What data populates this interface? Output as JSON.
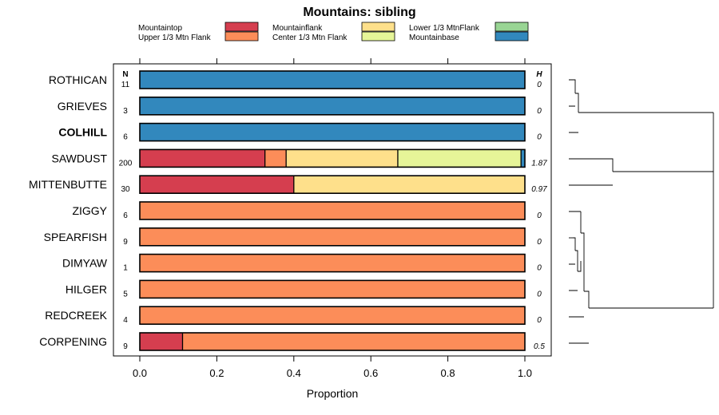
{
  "chart_data": {
    "type": "stacked-horizontal-bar",
    "title": "Mountains: sibling",
    "xlabel": "Proportion",
    "xlim": [
      0,
      1
    ],
    "xticks": [
      "0.0",
      "0.2",
      "0.4",
      "0.6",
      "0.8",
      "1.0"
    ],
    "xtick_values": [
      0,
      0.2,
      0.4,
      0.6,
      0.8,
      1.0
    ],
    "n_header": "N",
    "h_header": "H",
    "legend_position": "top",
    "legend": [
      {
        "name": "Mountaintop",
        "color": "#d53e4f"
      },
      {
        "name": "Upper 1/3 Mtn Flank",
        "color": "#fc8d59"
      },
      {
        "name": "Mountainflank",
        "color": "#fee08b"
      },
      {
        "name": "Center 1/3 Mtn Flank",
        "color": "#e6f598"
      },
      {
        "name": "Lower 1/3 MtnFlank",
        "color": "#99d594"
      },
      {
        "name": "Mountainbase",
        "color": "#3288bd"
      }
    ],
    "rows": [
      {
        "label": "ROTHICAN",
        "bold": false,
        "n": "11",
        "h": "0",
        "segments": [
          {
            "cat": "Mountainbase",
            "value": 1.0
          }
        ]
      },
      {
        "label": "GRIEVES",
        "bold": false,
        "n": "3",
        "h": "0",
        "segments": [
          {
            "cat": "Mountainbase",
            "value": 1.0
          }
        ]
      },
      {
        "label": "COLHILL",
        "bold": true,
        "n": "6",
        "h": "0",
        "segments": [
          {
            "cat": "Mountainbase",
            "value": 1.0
          }
        ]
      },
      {
        "label": "SAWDUST",
        "bold": false,
        "n": "200",
        "h": "1.87",
        "segments": [
          {
            "cat": "Mountaintop",
            "value": 0.325
          },
          {
            "cat": "Upper 1/3 Mtn Flank",
            "value": 0.055
          },
          {
            "cat": "Mountainflank",
            "value": 0.29
          },
          {
            "cat": "Center 1/3 Mtn Flank",
            "value": 0.32
          },
          {
            "cat": "Mountainbase",
            "value": 0.01
          }
        ]
      },
      {
        "label": "MITTENBUTTE",
        "bold": false,
        "n": "30",
        "h": "0.97",
        "segments": [
          {
            "cat": "Mountaintop",
            "value": 0.4
          },
          {
            "cat": "Mountainflank",
            "value": 0.6
          }
        ]
      },
      {
        "label": "ZIGGY",
        "bold": false,
        "n": "6",
        "h": "0",
        "segments": [
          {
            "cat": "Upper 1/3 Mtn Flank",
            "value": 1.0
          }
        ]
      },
      {
        "label": "SPEARFISH",
        "bold": false,
        "n": "9",
        "h": "0",
        "segments": [
          {
            "cat": "Upper 1/3 Mtn Flank",
            "value": 1.0
          }
        ]
      },
      {
        "label": "DIMYAW",
        "bold": false,
        "n": "1",
        "h": "0",
        "segments": [
          {
            "cat": "Upper 1/3 Mtn Flank",
            "value": 1.0
          }
        ]
      },
      {
        "label": "HILGER",
        "bold": false,
        "n": "5",
        "h": "0",
        "segments": [
          {
            "cat": "Upper 1/3 Mtn Flank",
            "value": 1.0
          }
        ]
      },
      {
        "label": "REDCREEK",
        "bold": false,
        "n": "4",
        "h": "0",
        "segments": [
          {
            "cat": "Upper 1/3 Mtn Flank",
            "value": 1.0
          }
        ]
      },
      {
        "label": "CORPENING",
        "bold": false,
        "n": "9",
        "h": "0.5",
        "segments": [
          {
            "cat": "Mountaintop",
            "value": 0.111
          },
          {
            "cat": "Upper 1/3 Mtn Flank",
            "value": 0.889
          }
        ]
      }
    ],
    "dendrogram": {
      "tips": [
        "ROTHICAN",
        "GRIEVES",
        "COLHILL",
        "SAWDUST",
        "MITTENBUTTE",
        "ZIGGY",
        "SPEARFISH",
        "DIMYAW",
        "HILGER",
        "REDCREEK",
        "CORPENING"
      ]
    }
  }
}
